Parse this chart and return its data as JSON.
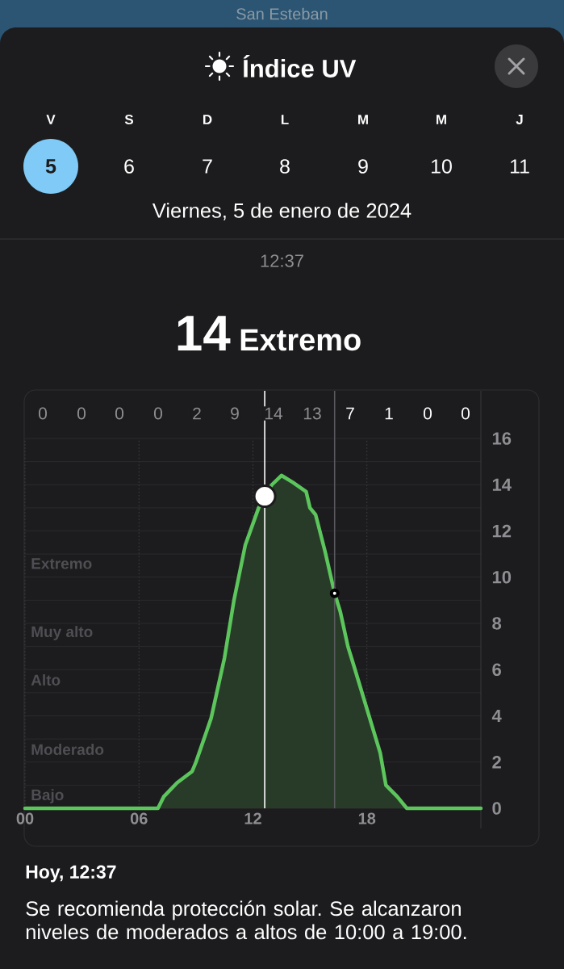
{
  "chart_data": {
    "type": "area",
    "title": "Índice UV",
    "subtitle": "Viernes, 5 de enero de 2024",
    "x": [
      0,
      1,
      3,
      5,
      6,
      6.6,
      7,
      7.3,
      8,
      8.8,
      9,
      9.8,
      10.5,
      11,
      11.6,
      12.3,
      13,
      13.5,
      14.1,
      14.8,
      15,
      15.3,
      15.8,
      16.3,
      16.6,
      17,
      17.3,
      18,
      18.7,
      19,
      19.6,
      20.1,
      21,
      23,
      24
    ],
    "series": [
      {
        "color": "#5cc65c",
        "values": [
          0,
          0,
          0,
          0,
          0,
          0,
          0,
          0.5,
          1.1,
          1.6,
          2,
          3.9,
          6.5,
          9,
          11.4,
          13,
          14,
          14.4,
          14.1,
          13.7,
          13,
          12.7,
          11.1,
          9.3,
          8.5,
          7,
          6.2,
          4.3,
          2.4,
          1,
          0.5,
          0,
          0,
          0,
          0
        ]
      },
      {
        "type": "scatter",
        "x": [
          12.62
        ],
        "values": [
          13.5
        ],
        "color": "#ffffff",
        "marker": "circle"
      },
      {
        "type": "scatter",
        "x": [
          16.3
        ],
        "values": [
          9.3
        ],
        "color": "#ffffff",
        "marker": "circle"
      }
    ],
    "xlim": [
      0,
      24
    ],
    "xticks": [
      {
        "value": 0,
        "label": "00"
      },
      {
        "value": 6,
        "label": "06"
      },
      {
        "value": 12,
        "label": "12"
      },
      {
        "value": 18,
        "label": "18"
      }
    ],
    "ylim": [
      0,
      16
    ],
    "yticks": [
      0,
      {
        "value": 1,
        "label": null
      },
      2,
      {
        "value": 3,
        "label": null
      },
      4,
      {
        "value": 5,
        "label": null
      },
      6,
      {
        "value": 7,
        "label": null
      },
      8,
      {
        "value": 9,
        "label": null
      },
      10,
      {
        "value": 11,
        "label": null
      },
      12,
      {
        "value": 13,
        "label": null
      },
      14,
      {
        "value": 15,
        "label": null
      },
      16
    ],
    "grid": true,
    "ref_lines": [
      {
        "axis": "x",
        "value": 12.62,
        "color": "#ffffff"
      },
      {
        "axis": "x",
        "value": 16.3,
        "color": "#5a5a5e"
      }
    ],
    "annotations": [
      "San Esteban",
      "V",
      "S",
      "D",
      "L",
      "M",
      "M",
      "J",
      "5",
      "6",
      "7",
      "8",
      "9",
      "10",
      "11",
      "12:37",
      "14",
      "Extremo",
      "0",
      "0",
      "0",
      "0",
      "2",
      "9",
      "14",
      "13",
      "7",
      "1",
      "0",
      "0",
      "Extremo",
      "Muy alto",
      "Alto",
      "Moderado",
      "Bajo",
      "Hoy, 12:37",
      "Se recomienda protección solar. Se alcanzaron niveles de moderados a altos de 10:00 a 19:00."
    ]
  }
}
